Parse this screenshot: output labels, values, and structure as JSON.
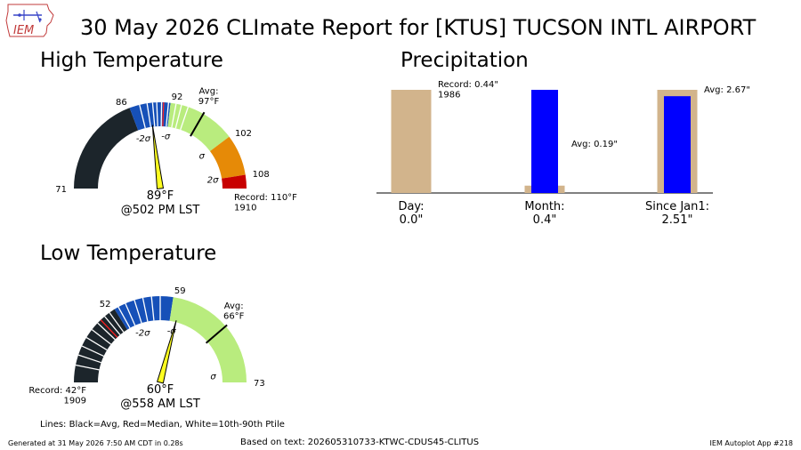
{
  "title": "30 May 2026 CLImate Report for [KTUS] TUCSON INTL AIRPORT",
  "logo": {
    "text": "IEM",
    "icon": "iowa-state-outline"
  },
  "high": {
    "title": "High Temperature",
    "range": [
      71,
      110
    ],
    "value": 89,
    "value_label": "89°F",
    "time_label": "@502 PM LST",
    "avg": 97,
    "avg_label": "Avg:\n97°F",
    "record_label": "Record: 110°F\n1910",
    "tick_values": [
      71,
      86,
      92,
      102,
      108
    ],
    "sigma_labels": [
      {
        "text": "-2σ",
        "value": 86.5
      },
      {
        "text": "-σ",
        "value": 91.8
      },
      {
        "text": "σ",
        "value": 101.6
      },
      {
        "text": "2σ",
        "value": 107.8
      }
    ],
    "zones": [
      {
        "from": 71,
        "to": 86,
        "color": "#1c252b"
      },
      {
        "from": 86,
        "to": 92,
        "color": "#1650b8"
      },
      {
        "from": 92,
        "to": 102,
        "color": "#b9ec7e"
      },
      {
        "from": 102,
        "to": 108,
        "color": "#e68a07"
      },
      {
        "from": 108,
        "to": 110,
        "color": "#c80000"
      }
    ],
    "percentile_lines": [
      87.5,
      88.6,
      89.4,
      90.0,
      90.7,
      91.7,
      92.8,
      93.6,
      94.6
    ],
    "median": 91.0
  },
  "low": {
    "title": "Low Temperature",
    "range": [
      42,
      73
    ],
    "value": 60,
    "value_label": "60°F",
    "time_label": "@558 AM LST",
    "avg": 66,
    "avg_label": "Avg:\n66°F",
    "record_label": "Record: 42°F\n1909",
    "tick_values": [
      52,
      59,
      73
    ],
    "sigma_labels": [
      {
        "text": "-2σ",
        "value": 54.2
      },
      {
        "text": "-σ",
        "value": 59.6
      },
      {
        "text": "σ",
        "value": 71.8
      }
    ],
    "zones": [
      {
        "from": 42,
        "to": 52,
        "color": "#1c252b"
      },
      {
        "from": 52,
        "to": 59,
        "color": "#1650b8"
      },
      {
        "from": 59,
        "to": 73,
        "color": "#b9ec7e"
      }
    ],
    "percentile_lines": [
      44.0,
      45.2,
      46.3,
      47.4,
      48.5,
      49.5,
      50.6,
      51.3,
      52.5,
      53.4,
      54.5,
      55.5,
      56.5,
      57.5
    ],
    "median": 50.0
  },
  "precip": {
    "title": "Precipitation",
    "max": 2.67,
    "items": [
      {
        "label": "Day:\n0.0\"",
        "observed": 0.0,
        "avg": null,
        "record": 0.44,
        "note": "Record: 0.44\"\n1986"
      },
      {
        "label": "Month:\n0.4\"",
        "observed": 0.4,
        "avg": 0.19,
        "record": null,
        "note": "Avg: 0.19\""
      },
      {
        "label": "Since Jan1:\n2.51\"",
        "observed": 2.51,
        "avg": 2.67,
        "record": null,
        "note": "Avg: 2.67\""
      }
    ],
    "colors": {
      "reference": "#d2b48c",
      "observed": "#0000ff"
    }
  },
  "chart_data": [
    {
      "type": "gauge",
      "title": "High Temperature",
      "range": [
        71,
        110
      ],
      "value": 89,
      "avg": 97,
      "record": 110,
      "record_year": 1910,
      "time": "@502 PM LST"
    },
    {
      "type": "bar",
      "title": "Precipitation",
      "categories": [
        "Day",
        "Month",
        "Since Jan1"
      ],
      "series": [
        {
          "name": "observed",
          "values": [
            0.0,
            0.4,
            2.51
          ]
        },
        {
          "name": "reference",
          "values": [
            0.44,
            0.19,
            2.67
          ]
        }
      ]
    },
    {
      "type": "gauge",
      "title": "Low Temperature",
      "range": [
        42,
        73
      ],
      "value": 60,
      "avg": 66,
      "record": 42,
      "record_year": 1909,
      "time": "@558 AM LST"
    }
  ],
  "lines_note": "Lines: Black=Avg, Red=Median, White=10th-90th Ptile",
  "footer": {
    "left": "Generated at 31 May 2026 7:50 AM CDT in 0.28s",
    "center": "Based on text: 202605310733-KTWC-CDUS45-CLITUS",
    "right": "IEM Autoplot App #218"
  }
}
